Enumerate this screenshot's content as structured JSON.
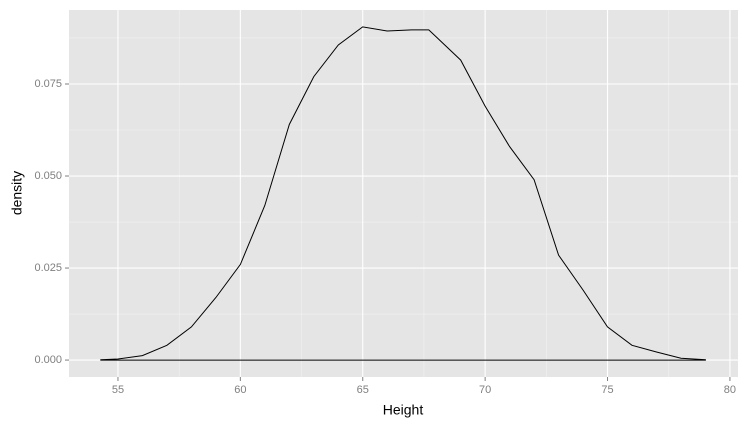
{
  "chart_data": {
    "type": "area",
    "x_label": "Height",
    "y_label": "density",
    "x": [
      54.3,
      55,
      56,
      57,
      58,
      59,
      60,
      61,
      62,
      63,
      64,
      65,
      66,
      67,
      67.7,
      68,
      69,
      70,
      71,
      72,
      73,
      74,
      75,
      76,
      77,
      78,
      79
    ],
    "values": [
      0.0001,
      0.0003,
      0.0012,
      0.004,
      0.009,
      0.017,
      0.026,
      0.042,
      0.064,
      0.077,
      0.0856,
      0.0905,
      0.0894,
      0.0897,
      0.0897,
      0.0878,
      0.0815,
      0.069,
      0.058,
      0.049,
      0.0285,
      0.019,
      0.009,
      0.004,
      0.0022,
      0.0005,
      0.0001
    ],
    "color": "#000000",
    "xlim": [
      53.0,
      80.33
    ],
    "ylim": [
      -0.0046,
      0.0951
    ],
    "xticks": [
      55,
      60,
      65,
      70,
      75,
      80
    ],
    "yticks": [
      {
        "value": 0,
        "label": "0.000"
      },
      0.025,
      {
        "value": 0.05,
        "label": "0.050"
      },
      0.075
    ],
    "grid": true,
    "minor_grid": true
  }
}
